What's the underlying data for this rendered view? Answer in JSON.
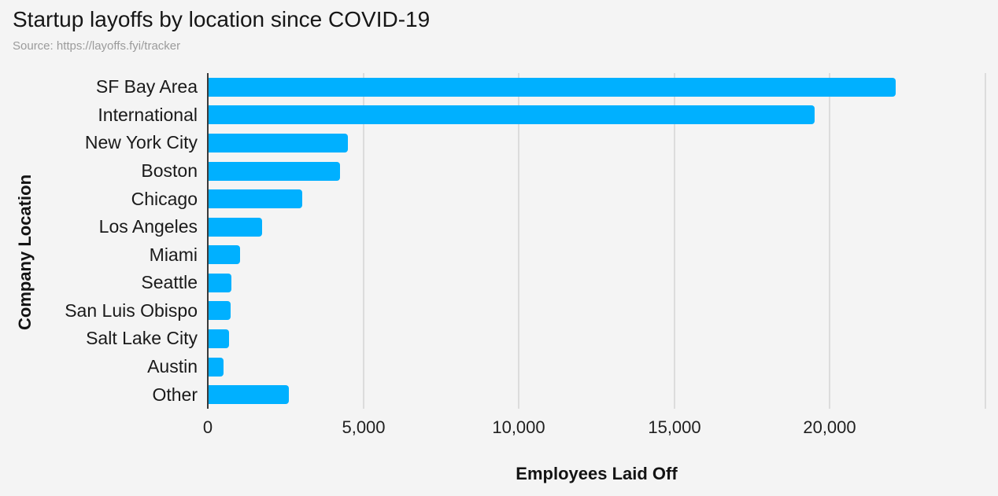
{
  "header": {
    "title": "Startup layoffs by location since COVID-19",
    "subtitle": "Source: https://layoffs.fyi/tracker"
  },
  "chart_data": {
    "type": "bar",
    "orientation": "horizontal",
    "title": "Startup layoffs by location since COVID-19",
    "source": "Source: https://layoffs.fyi/tracker",
    "xlabel": "Employees Laid Off",
    "ylabel": "Company Location",
    "categories": [
      "SF Bay Area",
      "International",
      "New York City",
      "Boston",
      "Chicago",
      "Los Angeles",
      "Miami",
      "Seattle",
      "San Luis Obispo",
      "Salt Lake City",
      "Austin",
      "Other"
    ],
    "values": [
      22100,
      19500,
      4480,
      4240,
      3000,
      1730,
      1000,
      740,
      700,
      650,
      470,
      2590
    ],
    "xlim": [
      0,
      25000
    ],
    "xticks": [
      {
        "value": 0,
        "label": "0"
      },
      {
        "value": 5000,
        "label": "5,000"
      },
      {
        "value": 10000,
        "label": "10,000"
      },
      {
        "value": 15000,
        "label": "15,000"
      },
      {
        "value": 20000,
        "label": "20,000"
      },
      {
        "value": 25000,
        "label": ""
      }
    ],
    "grid": "vertical",
    "legend": "none",
    "colors": {
      "bar": "#00b0ff",
      "background": "#f4f4f4",
      "gridline": "#dcdcdc",
      "axis_line": "#3a3a3a",
      "title_text": "#161616",
      "subtitle_text": "#9b9b9b",
      "label_text": "#1a1a1a"
    }
  }
}
